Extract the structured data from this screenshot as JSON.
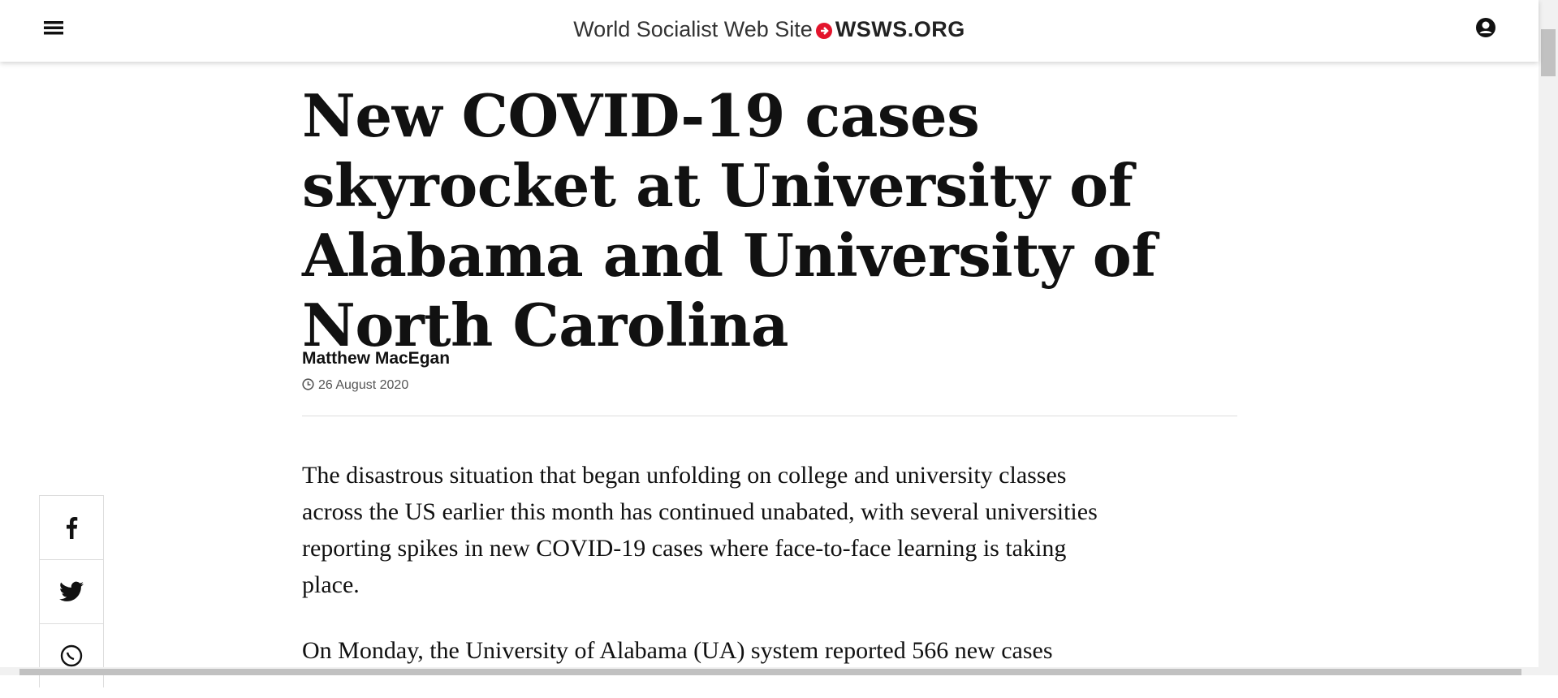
{
  "header": {
    "site_name": "World Socialist Web Site",
    "logo": "WSWS.ORG"
  },
  "article": {
    "title": "New COVID-19 cases skyrocket at University of Alabama and University of North Carolina",
    "author": "Matthew MacEgan",
    "date": "26 August 2020",
    "paragraphs": [
      "The disastrous situation that began unfolding on college and university classes across the US earlier this month has continued unabated, with several universities reporting spikes in new COVID-19 cases where face-to-face learning is taking place.",
      "On Monday, the University of Alabama (UA) system reported 566 new cases"
    ]
  }
}
